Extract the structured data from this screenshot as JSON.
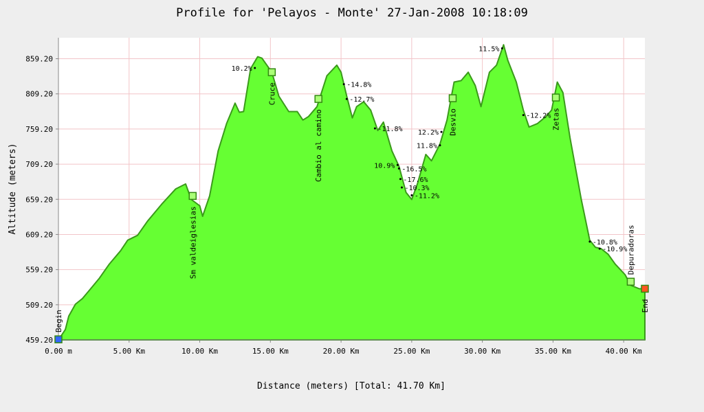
{
  "chart_data": {
    "type": "area",
    "title": "Profile for 'Pelayos - Monte' 27-Jan-2008 10:18:09",
    "x_label": "Distance (meters) [Total: 41.70 Km]",
    "y_label": "Altitude (meters)",
    "color": "#66ff33",
    "line_color": "#3a9a1a",
    "grid": true,
    "xlim": [
      0,
      41.5
    ],
    "ylim": [
      459.2,
      889
    ],
    "xticks": [
      {
        "value": 0,
        "label": "0.00 m"
      },
      {
        "value": 5,
        "label": "5.00 Km"
      },
      {
        "value": 10,
        "label": "10.00 Km"
      },
      {
        "value": 15,
        "label": "15.00 Km"
      },
      {
        "value": 20,
        "label": "20.00 Km"
      },
      {
        "value": 25,
        "label": "25.00 Km"
      },
      {
        "value": 30,
        "label": "30.00 Km"
      },
      {
        "value": 35,
        "label": "35.00 Km"
      },
      {
        "value": 40,
        "label": "40.00 Km"
      }
    ],
    "yticks": [
      {
        "value": 459.2,
        "label": "459.20"
      },
      {
        "value": 509.2,
        "label": "509.20"
      },
      {
        "value": 559.2,
        "label": "559.20"
      },
      {
        "value": 609.2,
        "label": "609.20"
      },
      {
        "value": 659.2,
        "label": "659.20"
      },
      {
        "value": 709.2,
        "label": "709.20"
      },
      {
        "value": 759.2,
        "label": "759.20"
      },
      {
        "value": 809.2,
        "label": "809.20"
      },
      {
        "value": 859.2,
        "label": "859.20"
      }
    ],
    "x": [
      0,
      0.49,
      0.73,
      1.2,
      1.7,
      2.2,
      2.9,
      3.6,
      4.4,
      4.9,
      5.6,
      6.3,
      7.3,
      8.3,
      9.0,
      9.4,
      10.0,
      10.2,
      10.7,
      11.3,
      11.9,
      12.5,
      12.8,
      13.1,
      13.6,
      14.1,
      14.4,
      15.1,
      15.6,
      16.3,
      16.9,
      17.3,
      17.7,
      18.3,
      19.0,
      19.7,
      20.0,
      20.4,
      20.8,
      21.1,
      21.6,
      22.1,
      22.6,
      23.0,
      23.6,
      24.1,
      24.6,
      25.0,
      25.4,
      26.0,
      26.4,
      27.0,
      27.5,
      28.0,
      28.5,
      29.0,
      29.5,
      29.9,
      30.5,
      31.0,
      31.5,
      31.8,
      32.4,
      32.9,
      33.3,
      33.9,
      34.5,
      34.9,
      35.3,
      35.7,
      36.2,
      37.0,
      37.6,
      38.0,
      38.4,
      38.9,
      39.4,
      40.1,
      40.5,
      41.1,
      41.5
    ],
    "values": [
      459.2,
      474,
      493,
      510,
      518,
      530,
      547,
      567,
      586,
      601,
      608,
      628,
      652,
      674,
      681,
      659,
      650,
      635,
      664,
      728,
      767,
      796,
      783,
      784,
      845,
      862,
      860,
      840,
      806,
      784,
      784,
      772,
      777,
      791,
      835,
      850,
      840,
      806,
      775,
      791,
      798,
      786,
      757,
      769,
      728,
      706,
      669,
      659,
      681,
      723,
      714,
      738,
      772,
      826,
      828,
      840,
      821,
      791,
      840,
      850,
      879,
      857,
      826,
      786,
      762,
      767,
      777,
      786,
      826,
      811,
      747,
      659,
      601,
      591,
      589,
      581,
      567,
      552,
      537,
      532,
      532
    ],
    "waypoints": [
      {
        "name": "Begin",
        "x": 0,
        "y": 460,
        "color": "#3366ff"
      },
      {
        "name": "Sm valdeiglesias",
        "x": 9.5,
        "y": 664,
        "color": "#aaff77"
      },
      {
        "name": "Cruce",
        "x": 15.1,
        "y": 840,
        "color": "#aaff77"
      },
      {
        "name": "Cambio al camino",
        "x": 18.4,
        "y": 802,
        "color": "#aaff77"
      },
      {
        "name": "Desvio",
        "x": 27.9,
        "y": 803,
        "color": "#aaff77"
      },
      {
        "name": "Zetas",
        "x": 35.2,
        "y": 804,
        "color": "#aaff77"
      },
      {
        "name": "Depuradoras",
        "x": 40.5,
        "y": 542,
        "color": "#aaff77"
      },
      {
        "name": "End",
        "x": 41.5,
        "y": 532,
        "color": "#ff5522"
      }
    ],
    "annotations": [
      {
        "x": 13.9,
        "y": 846,
        "label": "10.2%"
      },
      {
        "x": 20.2,
        "y": 823,
        "label": "-14.8%"
      },
      {
        "x": 20.4,
        "y": 802,
        "label": "-12.7%"
      },
      {
        "x": 22.4,
        "y": 760,
        "label": "-11.8%"
      },
      {
        "x": 24.0,
        "y": 708,
        "label": "10.9%"
      },
      {
        "x": 24.1,
        "y": 703,
        "label": "-16.5%"
      },
      {
        "x": 24.2,
        "y": 688,
        "label": "-17.6%"
      },
      {
        "x": 24.3,
        "y": 676,
        "label": "-10.3%"
      },
      {
        "x": 25.0,
        "y": 665,
        "label": "-11.2%"
      },
      {
        "x": 27.1,
        "y": 755,
        "label": "12.2%"
      },
      {
        "x": 27.0,
        "y": 736,
        "label": "11.8%"
      },
      {
        "x": 31.4,
        "y": 874,
        "label": "11.5%"
      },
      {
        "x": 32.9,
        "y": 779,
        "label": "-12.2%"
      },
      {
        "x": 37.6,
        "y": 599,
        "label": "-10.8%"
      },
      {
        "x": 38.3,
        "y": 589,
        "label": "-10.9%"
      }
    ]
  }
}
